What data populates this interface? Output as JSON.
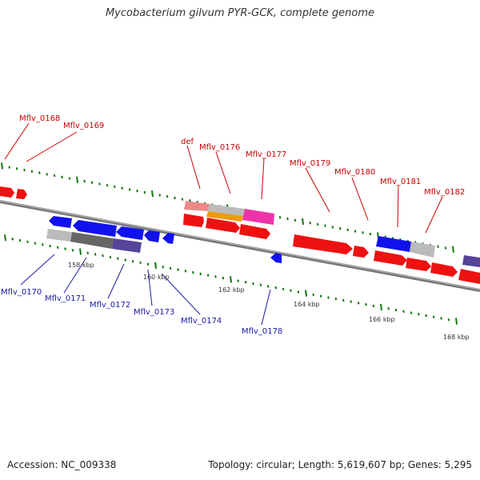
{
  "title": "Mycobacterium gilvum PYR-GCK, complete genome",
  "accession_text": "Accession: NC_009338",
  "stats_text": "Topology: circular; Length: 5,619,607 bp; Genes: 5,295",
  "colors": {
    "forward_gene": "#ee1111",
    "reverse_gene": "#1111ee",
    "backbone": "#888888",
    "tick_mark": "#117711",
    "top_label": "#cc0000",
    "bottom_label": "#1a1aaa"
  },
  "tick_labels": [
    "158 kbp",
    "160 kbp",
    "162 kbp",
    "164 kbp",
    "166 kbp",
    "168 kbp"
  ],
  "top_gene_labels": [
    "Mflv_0168",
    "Mflv_0169",
    "def",
    "Mflv_0176",
    "Mflv_0177",
    "Mflv_0179",
    "Mflv_0180",
    "Mflv_0181",
    "Mflv_0182"
  ],
  "bottom_gene_labels": [
    "Mflv_0170",
    "Mflv_0171",
    "Mflv_0172",
    "Mflv_0173",
    "Mflv_0174",
    "Mflv_0178"
  ]
}
